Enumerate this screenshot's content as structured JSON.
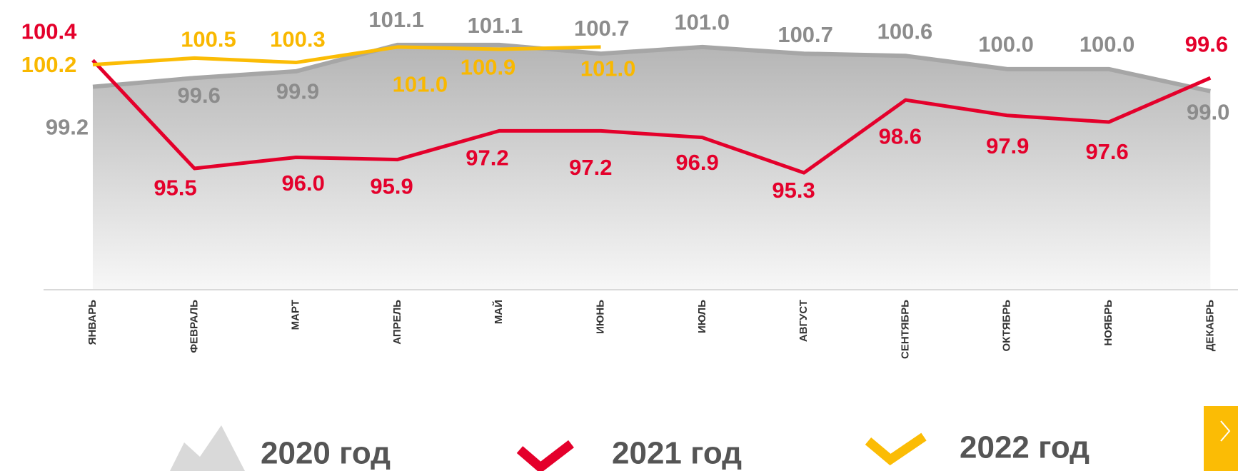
{
  "chart_data": {
    "type": "line",
    "categories": [
      "ЯНВАРЬ",
      "ФЕВРАЛЬ",
      "МАРТ",
      "АПРЕЛЬ",
      "МАЙ",
      "ИЮНЬ",
      "ИЮЛЬ",
      "АВГУСТ",
      "СЕНТЯБРЬ",
      "ОКТЯБРЬ",
      "НОЯБРЬ",
      "ДЕКАБРЬ"
    ],
    "series": [
      {
        "name": "2020 год",
        "color": "#a6a6a6",
        "label_color": "#8c8c8c",
        "area": true,
        "values": [
          99.2,
          99.6,
          99.9,
          101.1,
          101.1,
          100.7,
          101.0,
          100.7,
          100.6,
          100.0,
          100.0,
          99.0
        ],
        "value_labels": [
          "99.2",
          "99.6",
          "99.9",
          "101.1",
          "101.1",
          "100.7",
          "101.0",
          "100.7",
          "100.6",
          "100.0",
          "100.0",
          "99.0"
        ]
      },
      {
        "name": "2021 год",
        "color": "#e4002b",
        "label_color": "#e4002b",
        "values": [
          100.4,
          95.5,
          96.0,
          95.9,
          97.2,
          97.2,
          96.9,
          95.3,
          98.6,
          97.9,
          97.6,
          99.6
        ],
        "value_labels": [
          "100.4",
          "95.5",
          "96.0",
          "95.9",
          "97.2",
          "97.2",
          "96.9",
          "95.3",
          "98.6",
          "97.9",
          "97.6",
          "99.6"
        ]
      },
      {
        "name": "2022 год",
        "color": "#fbbc05",
        "label_color": "#f9b800",
        "values": [
          100.2,
          100.5,
          100.3,
          101.0,
          100.9,
          101.0,
          null,
          null,
          null,
          null,
          null,
          null
        ],
        "value_labels": [
          "100.2",
          "100.5",
          "100.3",
          "101.0",
          "100.9",
          "101.0",
          null,
          null,
          null,
          null,
          null,
          null
        ]
      }
    ],
    "ylim": [
      90,
      102
    ]
  }
}
